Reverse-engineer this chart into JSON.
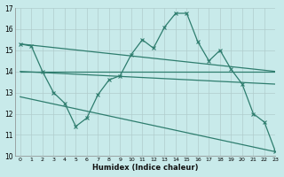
{
  "xlabel": "Humidex (Indice chaleur)",
  "bg_color": "#c8eaea",
  "grid_color": "#c0d8d8",
  "line_color": "#2e7d6e",
  "xlim": [
    -0.5,
    23
  ],
  "ylim": [
    10,
    17
  ],
  "yticks": [
    10,
    11,
    12,
    13,
    14,
    15,
    16,
    17
  ],
  "xticks": [
    0,
    1,
    2,
    3,
    4,
    5,
    6,
    7,
    8,
    9,
    10,
    11,
    12,
    13,
    14,
    15,
    16,
    17,
    18,
    19,
    20,
    21,
    22,
    23
  ],
  "xtick_labels": [
    "0",
    "1",
    "2",
    "3",
    "4",
    "5",
    "6",
    "7",
    "8",
    "9",
    "10",
    "11",
    "12",
    "13",
    "14",
    "15",
    "16",
    "17",
    "18",
    "19",
    "20",
    "21",
    "22",
    "23"
  ],
  "series1_x": [
    0,
    1,
    2,
    3,
    4,
    5,
    6,
    7,
    8,
    9,
    10,
    11,
    12,
    13,
    14,
    15,
    16,
    17,
    18,
    19,
    20,
    21,
    22,
    23
  ],
  "series1_y": [
    15.3,
    15.2,
    14.0,
    13.0,
    12.5,
    11.4,
    11.8,
    12.9,
    13.6,
    13.8,
    14.8,
    15.5,
    15.1,
    16.1,
    16.75,
    16.75,
    15.4,
    14.5,
    15.0,
    14.1,
    13.4,
    12.0,
    11.6,
    10.2
  ],
  "series2_x": [
    0,
    23
  ],
  "series2_y": [
    15.3,
    14.0
  ],
  "series3_x": [
    0,
    23
  ],
  "series3_y": [
    14.0,
    14.0
  ],
  "series4_x": [
    0,
    23
  ],
  "series4_y": [
    14.0,
    13.4
  ],
  "series5_x": [
    0,
    23
  ],
  "series5_y": [
    12.8,
    10.2
  ]
}
